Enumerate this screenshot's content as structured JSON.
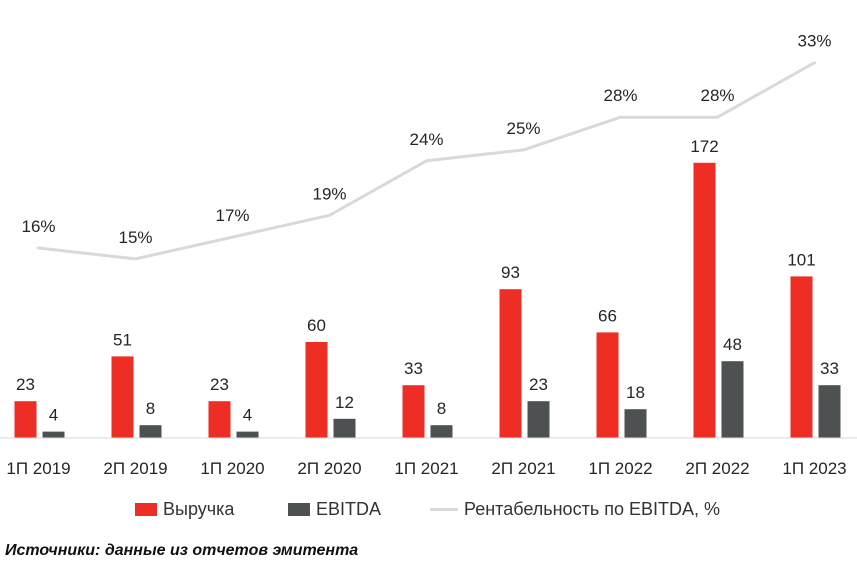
{
  "chart_data": {
    "type": "bar",
    "categories": [
      "1П 2019",
      "2П 2019",
      "1П 2020",
      "2П 2020",
      "1П 2021",
      "2П 2021",
      "1П 2022",
      "2П 2022",
      "1П 2023"
    ],
    "series": [
      {
        "name": "Выручка",
        "values": [
          23,
          51,
          23,
          60,
          33,
          93,
          66,
          172,
          101
        ],
        "color": "#ee2e24"
      },
      {
        "name": "EBITDA",
        "values": [
          4,
          8,
          4,
          12,
          8,
          23,
          18,
          48,
          33
        ],
        "color": "#4d5152"
      }
    ],
    "line_series": {
      "name": "Рентабельность по EBITDA, %",
      "values": [
        16,
        15,
        17,
        19,
        24,
        25,
        28,
        28,
        33
      ],
      "labels": [
        "16%",
        "15%",
        "17%",
        "19%",
        "24%",
        "25%",
        "28%",
        "28%",
        "33%"
      ],
      "color": "#d9d9d9"
    },
    "legend_position": "bottom",
    "grid": false
  },
  "source_note": "Источники: данные из отчетов эмитента"
}
